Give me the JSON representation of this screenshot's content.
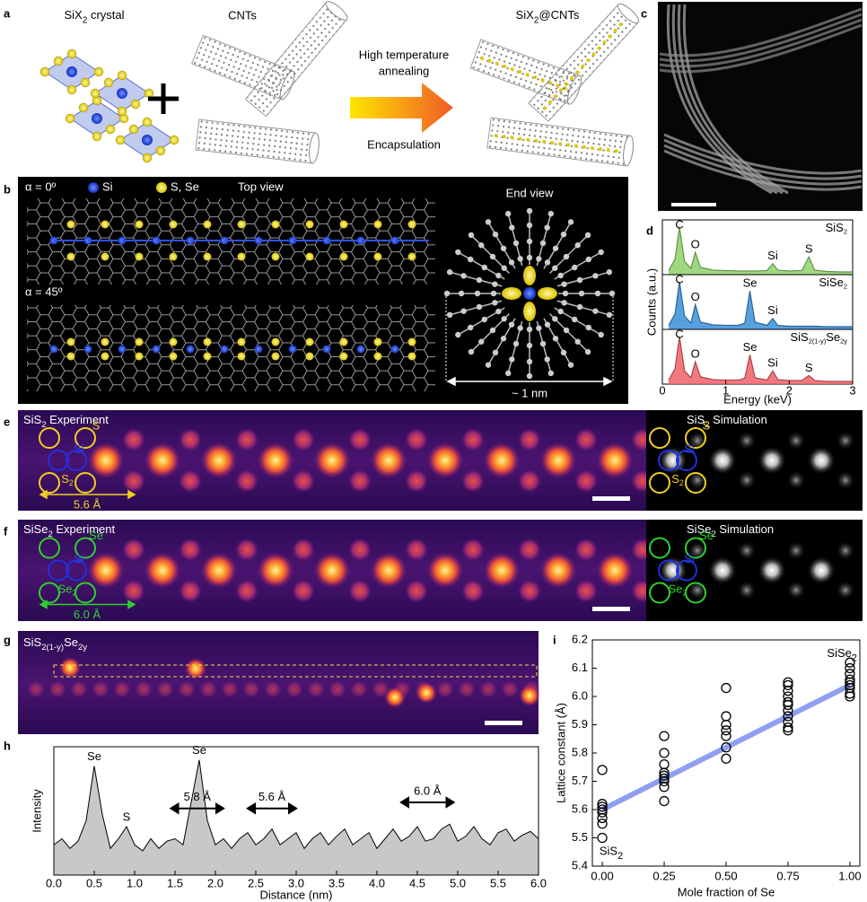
{
  "panels": {
    "a": {
      "label": "a",
      "crystal": [
        "SiX",
        "2",
        " crystal"
      ],
      "cnts": "CNTs",
      "process_top": [
        "High temperature",
        "annealing"
      ],
      "process_bottom": "Encapsulation",
      "product": [
        "SiX",
        "2",
        "@CNTs"
      ]
    },
    "b": {
      "label": "b",
      "alpha_0": "α = 0º",
      "legend": [
        "Si",
        "S, Se"
      ],
      "top_view": "Top view",
      "alpha_45": "α = 45º",
      "end_view": "End view",
      "size": "~ 1 nm"
    },
    "c": {
      "label": "c"
    },
    "e": {
      "label": "e",
      "experiment": [
        "SiS",
        "2",
        " Experiment"
      ],
      "simulation": [
        "SiS",
        "2",
        " Simulation"
      ],
      "atom_x": "S",
      "atom_si": "Si",
      "atom_x2": [
        "S",
        "2"
      ],
      "spacing": "5.6 Å"
    },
    "f": {
      "label": "f",
      "experiment": [
        "SiSe",
        "2",
        " Experiment"
      ],
      "simulation": [
        "SiSe",
        "2",
        " Simulation"
      ],
      "atom_x": "Se",
      "atom_si": "Si",
      "atom_x2": [
        "Se",
        "2"
      ],
      "spacing": "6.0 Å"
    },
    "g": {
      "label": "g",
      "title": [
        "SiS",
        "2(1-y)",
        "Se",
        "2y"
      ]
    }
  },
  "chart_data": [
    {
      "type": "spectra",
      "label": "d",
      "x_label": "Energy (keV)",
      "y_label": "Counts (a.u.)",
      "xlim": [
        0,
        3
      ],
      "xticks": [
        0,
        1,
        2,
        3
      ],
      "ylim": [
        0,
        1
      ],
      "x": [
        0.1,
        0.2,
        0.27,
        0.35,
        0.45,
        0.52,
        0.6,
        0.8,
        1.0,
        1.2,
        1.3,
        1.38,
        1.46,
        1.65,
        1.74,
        1.82,
        2.0,
        2.2,
        2.31,
        2.4,
        2.6,
        2.8,
        3.0
      ],
      "series": [
        {
          "name": [
            "SiS",
            "2"
          ],
          "color": "#8ed16a",
          "values": [
            0.05,
            0.3,
            1.0,
            0.25,
            0.1,
            0.45,
            0.12,
            0.06,
            0.05,
            0.04,
            0.04,
            0.04,
            0.04,
            0.05,
            0.2,
            0.06,
            0.04,
            0.05,
            0.35,
            0.06,
            0.03,
            0.02,
            0.02
          ],
          "peaks": [
            {
              "text": "C",
              "x": 0.27
            },
            {
              "text": "O",
              "x": 0.52
            },
            {
              "text": "Si",
              "x": 1.74
            },
            {
              "text": "S",
              "x": 2.31
            }
          ]
        },
        {
          "name": [
            "SiSe",
            "2"
          ],
          "color": "#3a8fd8",
          "values": [
            0.05,
            0.3,
            1.0,
            0.25,
            0.1,
            0.5,
            0.12,
            0.06,
            0.05,
            0.05,
            0.1,
            0.8,
            0.12,
            0.05,
            0.2,
            0.05,
            0.03,
            0.03,
            0.03,
            0.03,
            0.02,
            0.02,
            0.02
          ],
          "peaks": [
            {
              "text": "C",
              "x": 0.27
            },
            {
              "text": "O",
              "x": 0.52
            },
            {
              "text": "Se",
              "x": 1.38
            },
            {
              "text": "Si",
              "x": 1.74
            }
          ]
        },
        {
          "name": [
            "SiS",
            "2(1-y)",
            "Se",
            "2y"
          ],
          "color": "#f0606a",
          "values": [
            0.05,
            0.3,
            1.0,
            0.25,
            0.1,
            0.45,
            0.12,
            0.06,
            0.05,
            0.05,
            0.09,
            0.6,
            0.1,
            0.05,
            0.25,
            0.06,
            0.04,
            0.04,
            0.15,
            0.04,
            0.02,
            0.02,
            0.02
          ],
          "peaks": [
            {
              "text": "C",
              "x": 0.27
            },
            {
              "text": "O",
              "x": 0.52
            },
            {
              "text": "Se",
              "x": 1.38
            },
            {
              "text": "Si",
              "x": 1.74
            },
            {
              "text": "S",
              "x": 2.31
            }
          ]
        }
      ]
    },
    {
      "type": "area",
      "label": "h",
      "x_label": "Distance (nm)",
      "y_label": "Intensity",
      "xlim": [
        0,
        6
      ],
      "xticks": [
        {
          "value": 0,
          "label": "0.0"
        },
        0.5,
        {
          "value": 1,
          "label": "1.0"
        },
        1.5,
        {
          "value": 2,
          "label": "2.0"
        },
        2.5,
        {
          "value": 3,
          "label": "3.0"
        },
        3.5,
        {
          "value": 4,
          "label": "4.0"
        },
        4.5,
        {
          "value": 5,
          "label": "5.0"
        },
        5.5,
        {
          "value": 6,
          "label": "6.0"
        }
      ],
      "ylim": [
        0,
        1
      ],
      "x": [
        0,
        0.1,
        0.2,
        0.3,
        0.4,
        0.5,
        0.6,
        0.7,
        0.8,
        0.9,
        1.0,
        1.1,
        1.2,
        1.3,
        1.4,
        1.5,
        1.6,
        1.7,
        1.8,
        1.9,
        2.0,
        2.1,
        2.2,
        2.3,
        2.4,
        2.5,
        2.6,
        2.7,
        2.8,
        2.9,
        3.0,
        3.1,
        3.2,
        3.3,
        3.4,
        3.5,
        3.6,
        3.7,
        3.8,
        3.9,
        4.0,
        4.1,
        4.2,
        4.3,
        4.4,
        4.5,
        4.6,
        4.7,
        4.8,
        4.9,
        5.0,
        5.1,
        5.2,
        5.3,
        5.4,
        5.5,
        5.6,
        5.7,
        5.8,
        5.9,
        6.0
      ],
      "values": [
        0.25,
        0.3,
        0.22,
        0.28,
        0.45,
        0.9,
        0.5,
        0.22,
        0.3,
        0.4,
        0.25,
        0.2,
        0.3,
        0.22,
        0.28,
        0.3,
        0.25,
        0.6,
        0.95,
        0.45,
        0.25,
        0.3,
        0.22,
        0.3,
        0.35,
        0.25,
        0.3,
        0.38,
        0.25,
        0.3,
        0.35,
        0.22,
        0.3,
        0.35,
        0.25,
        0.32,
        0.38,
        0.25,
        0.3,
        0.35,
        0.22,
        0.3,
        0.38,
        0.28,
        0.32,
        0.4,
        0.28,
        0.3,
        0.38,
        0.42,
        0.28,
        0.32,
        0.4,
        0.3,
        0.25,
        0.35,
        0.38,
        0.28,
        0.33,
        0.36,
        0.3
      ],
      "color": "#c8c8c8",
      "peaks": [
        {
          "text": "Se",
          "x": 0.5
        },
        {
          "text": "S",
          "x": 0.9
        },
        {
          "text": "Se",
          "x": 1.8
        }
      ],
      "spans": [
        {
          "text": "5.8 Å",
          "x0": 1.45,
          "x1": 2.1,
          "y": 0.55
        },
        {
          "text": "5.6 Å",
          "x0": 2.4,
          "x1": 3.0,
          "y": 0.55
        },
        {
          "text": "6.0 Å",
          "x0": 4.3,
          "x1": 4.95,
          "y": 0.6
        }
      ]
    },
    {
      "type": "scatter",
      "label": "i",
      "x_label": "Mole fraction of Se",
      "y_label": "Lattice constant (Å)",
      "xlim": [
        -0.04,
        1.04
      ],
      "xticks": [
        {
          "value": 0,
          "label": "0.00"
        },
        0.25,
        {
          "value": 0.5,
          "label": "0.50"
        },
        0.75,
        {
          "value": 1,
          "label": "1.00"
        }
      ],
      "ylim": [
        5.4,
        6.2
      ],
      "yticks": [
        5.4,
        5.5,
        5.6,
        5.7,
        5.8,
        5.9,
        {
          "value": 6,
          "label": "6.0"
        },
        6.1,
        6.2
      ],
      "x": [
        0,
        0,
        0,
        0,
        0,
        0,
        0,
        0,
        0.25,
        0.25,
        0.25,
        0.25,
        0.25,
        0.25,
        0.25,
        0.25,
        0.25,
        0.5,
        0.5,
        0.5,
        0.5,
        0.5,
        0.5,
        0.5,
        0.75,
        0.75,
        0.75,
        0.75,
        0.75,
        0.75,
        0.75,
        0.75,
        0.75,
        0.75,
        0.75,
        1,
        1,
        1,
        1,
        1,
        1,
        1,
        1,
        1
      ],
      "values": [
        5.74,
        5.62,
        5.61,
        5.6,
        5.59,
        5.57,
        5.55,
        5.5,
        5.86,
        5.8,
        5.76,
        5.73,
        5.72,
        5.71,
        5.7,
        5.68,
        5.63,
        6.03,
        5.93,
        5.9,
        5.88,
        5.86,
        5.82,
        5.78,
        6.05,
        6.04,
        6.02,
        6.0,
        5.98,
        5.97,
        5.95,
        5.93,
        5.91,
        5.89,
        5.88,
        6.12,
        6.1,
        6.08,
        6.06,
        6.05,
        6.04,
        6.03,
        6.01,
        6.0
      ],
      "fit": {
        "x": [
          0,
          1
        ],
        "values": [
          5.6,
          6.04
        ],
        "color": "#7b8ff0"
      },
      "annotations": [
        {
          "text": [
            "SiS",
            "2"
          ],
          "x": 0,
          "y": 5.45
        },
        {
          "text": [
            "SiSe",
            "2"
          ],
          "x": 1,
          "y": 6.15
        }
      ]
    }
  ]
}
